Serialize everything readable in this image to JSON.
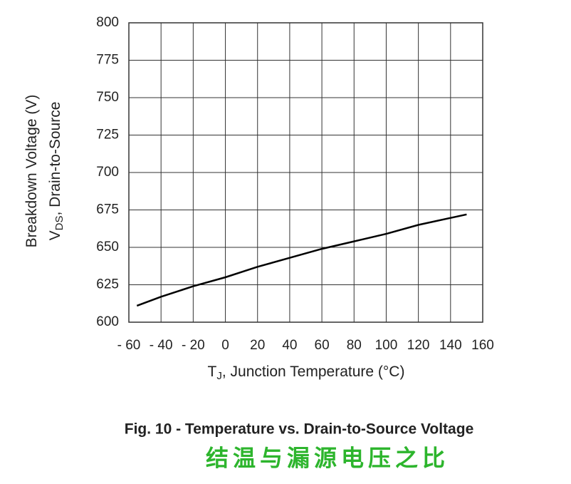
{
  "chart_data": {
    "type": "line",
    "ylabel": {
      "symbol": "V",
      "subscript": "DS",
      "text": ", Drain-to-Source",
      "line2": "Breakdown Voltage (V)"
    },
    "xlabel": {
      "symbol": "T",
      "subscript": "J",
      "text": ", Junction Temperature (°C)"
    },
    "caption": "Fig. 10 - Temperature vs. Drain-to-Source Voltage",
    "caption_cn": "结温与漏源电压之比",
    "x": [
      -55,
      -40,
      -20,
      0,
      20,
      40,
      60,
      80,
      100,
      120,
      150
    ],
    "values": [
      611,
      617,
      624,
      630,
      637,
      643,
      649,
      654,
      659,
      665,
      672
    ],
    "color": "#000000",
    "xlim": [
      -60,
      160
    ],
    "xticks": [
      {
        "value": -60,
        "label": "- 60"
      },
      {
        "value": -40,
        "label": "- 40"
      },
      {
        "value": -20,
        "label": "- 20"
      },
      0,
      20,
      40,
      60,
      80,
      100,
      120,
      140,
      160
    ],
    "ylim": [
      600,
      800
    ],
    "yticks": [
      600,
      625,
      650,
      675,
      700,
      725,
      750,
      775,
      800
    ],
    "grid": true
  }
}
